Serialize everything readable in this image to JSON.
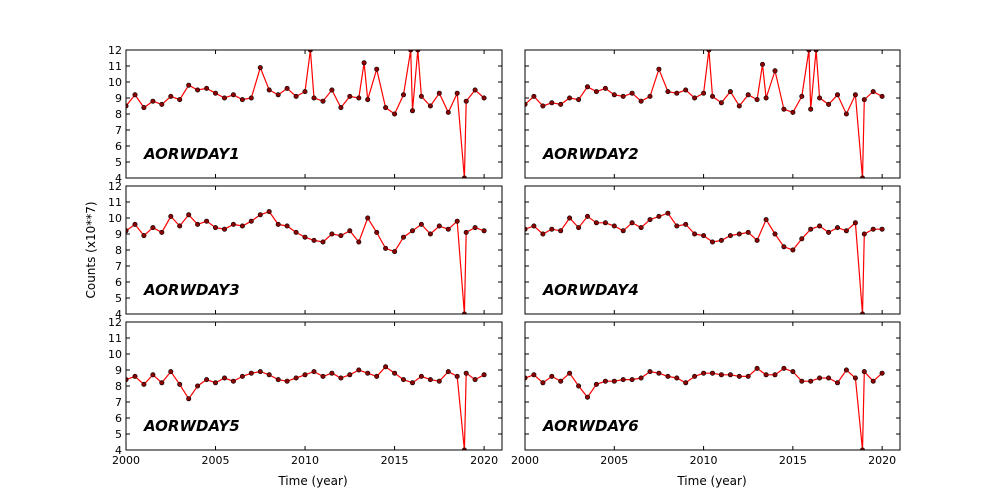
{
  "figure": {
    "ylabel": "Counts (x10**7)",
    "xlabel": "Time (year)",
    "line_color": "#ff0000",
    "marker_fill": "#8b0000",
    "marker_edge": "#000000"
  },
  "chart_data": [
    {
      "type": "line",
      "name": "AORWDAY1",
      "xlim": [
        2000,
        2021
      ],
      "ylim": [
        4,
        12
      ],
      "xticks": [
        2000,
        2005,
        2010,
        2015,
        2020
      ],
      "yticks": [
        4,
        5,
        6,
        7,
        8,
        9,
        10,
        11,
        12
      ],
      "x": [
        2000.0,
        2000.5,
        2001.0,
        2001.5,
        2002.0,
        2002.5,
        2003.0,
        2003.5,
        2004.0,
        2004.5,
        2005.0,
        2005.5,
        2006.0,
        2006.5,
        2007.0,
        2007.5,
        2008.0,
        2008.5,
        2009.0,
        2009.5,
        2010.0,
        2010.3,
        2010.5,
        2011.0,
        2011.5,
        2012.0,
        2012.5,
        2013.0,
        2013.3,
        2013.5,
        2014.0,
        2014.5,
        2015.0,
        2015.5,
        2015.9,
        2016.0,
        2016.3,
        2016.5,
        2017.0,
        2017.5,
        2018.0,
        2018.5,
        2018.9,
        2019.0,
        2019.5,
        2020.0
      ],
      "y": [
        8.5,
        9.2,
        8.4,
        8.8,
        8.6,
        9.1,
        8.9,
        9.8,
        9.5,
        9.6,
        9.3,
        9.0,
        9.2,
        8.9,
        9.0,
        10.9,
        9.5,
        9.2,
        9.6,
        9.1,
        9.4,
        12,
        9.0,
        8.8,
        9.5,
        8.4,
        9.1,
        9.0,
        11.2,
        8.9,
        10.8,
        8.4,
        8.0,
        9.2,
        12,
        8.2,
        12,
        9.1,
        8.5,
        9.3,
        8.1,
        9.3,
        4,
        8.8,
        9.5,
        9.0
      ]
    },
    {
      "type": "line",
      "name": "AORWDAY2",
      "xlim": [
        2000,
        2021
      ],
      "ylim": [
        4,
        12
      ],
      "xticks": [
        2000,
        2005,
        2010,
        2015,
        2020
      ],
      "yticks": [
        4,
        5,
        6,
        7,
        8,
        9,
        10,
        11,
        12
      ],
      "x": [
        2000.0,
        2000.5,
        2001.0,
        2001.5,
        2002.0,
        2002.5,
        2003.0,
        2003.5,
        2004.0,
        2004.5,
        2005.0,
        2005.5,
        2006.0,
        2006.5,
        2007.0,
        2007.5,
        2008.0,
        2008.5,
        2009.0,
        2009.5,
        2010.0,
        2010.3,
        2010.5,
        2011.0,
        2011.5,
        2012.0,
        2012.5,
        2013.0,
        2013.3,
        2013.5,
        2014.0,
        2014.5,
        2015.0,
        2015.5,
        2015.9,
        2016.0,
        2016.3,
        2016.5,
        2017.0,
        2017.5,
        2018.0,
        2018.5,
        2018.9,
        2019.0,
        2019.5,
        2020.0
      ],
      "y": [
        8.6,
        9.1,
        8.5,
        8.7,
        8.6,
        9.0,
        8.9,
        9.7,
        9.4,
        9.6,
        9.2,
        9.1,
        9.3,
        8.8,
        9.1,
        10.8,
        9.4,
        9.3,
        9.5,
        9.0,
        9.3,
        12,
        9.1,
        8.7,
        9.4,
        8.5,
        9.2,
        8.9,
        11.1,
        9.0,
        10.7,
        8.3,
        8.1,
        9.1,
        12,
        8.3,
        12,
        9.0,
        8.6,
        9.2,
        8.0,
        9.2,
        4,
        8.9,
        9.4,
        9.1
      ]
    },
    {
      "type": "line",
      "name": "AORWDAY3",
      "xlim": [
        2000,
        2021
      ],
      "ylim": [
        4,
        12
      ],
      "xticks": [
        2000,
        2005,
        2010,
        2015,
        2020
      ],
      "yticks": [
        4,
        5,
        6,
        7,
        8,
        9,
        10,
        11,
        12
      ],
      "x": [
        2000.0,
        2000.5,
        2001.0,
        2001.5,
        2002.0,
        2002.5,
        2003.0,
        2003.5,
        2004.0,
        2004.5,
        2005.0,
        2005.5,
        2006.0,
        2006.5,
        2007.0,
        2007.5,
        2008.0,
        2008.5,
        2009.0,
        2009.5,
        2010.0,
        2010.5,
        2011.0,
        2011.5,
        2012.0,
        2012.5,
        2013.0,
        2013.5,
        2014.0,
        2014.5,
        2015.0,
        2015.5,
        2016.0,
        2016.5,
        2017.0,
        2017.5,
        2018.0,
        2018.5,
        2018.9,
        2019.0,
        2019.5,
        2020.0
      ],
      "y": [
        9.2,
        9.6,
        8.9,
        9.4,
        9.1,
        10.1,
        9.5,
        10.2,
        9.6,
        9.8,
        9.4,
        9.3,
        9.6,
        9.5,
        9.8,
        10.2,
        10.4,
        9.6,
        9.5,
        9.1,
        8.8,
        8.6,
        8.5,
        9.0,
        8.9,
        9.2,
        8.5,
        10.0,
        9.1,
        8.1,
        7.9,
        8.8,
        9.2,
        9.6,
        9.0,
        9.5,
        9.3,
        9.8,
        4,
        9.1,
        9.4,
        9.2
      ]
    },
    {
      "type": "line",
      "name": "AORWDAY4",
      "xlim": [
        2000,
        2021
      ],
      "ylim": [
        4,
        12
      ],
      "xticks": [
        2000,
        2005,
        2010,
        2015,
        2020
      ],
      "yticks": [
        4,
        5,
        6,
        7,
        8,
        9,
        10,
        11,
        12
      ],
      "x": [
        2000.0,
        2000.5,
        2001.0,
        2001.5,
        2002.0,
        2002.5,
        2003.0,
        2003.5,
        2004.0,
        2004.5,
        2005.0,
        2005.5,
        2006.0,
        2006.5,
        2007.0,
        2007.5,
        2008.0,
        2008.5,
        2009.0,
        2009.5,
        2010.0,
        2010.5,
        2011.0,
        2011.5,
        2012.0,
        2012.5,
        2013.0,
        2013.5,
        2014.0,
        2014.5,
        2015.0,
        2015.5,
        2016.0,
        2016.5,
        2017.0,
        2017.5,
        2018.0,
        2018.5,
        2018.9,
        2019.0,
        2019.5,
        2020.0
      ],
      "y": [
        9.3,
        9.5,
        9.0,
        9.3,
        9.2,
        10.0,
        9.4,
        10.1,
        9.7,
        9.7,
        9.5,
        9.2,
        9.7,
        9.4,
        9.9,
        10.1,
        10.3,
        9.5,
        9.6,
        9.0,
        8.9,
        8.5,
        8.6,
        8.9,
        9.0,
        9.1,
        8.6,
        9.9,
        9.0,
        8.2,
        8.0,
        8.7,
        9.3,
        9.5,
        9.1,
        9.4,
        9.2,
        9.7,
        4,
        9.0,
        9.3,
        9.3
      ]
    },
    {
      "type": "line",
      "name": "AORWDAY5",
      "xlim": [
        2000,
        2021
      ],
      "ylim": [
        4,
        12
      ],
      "xticks": [
        2000,
        2005,
        2010,
        2015,
        2020
      ],
      "yticks": [
        4,
        5,
        6,
        7,
        8,
        9,
        10,
        11,
        12
      ],
      "x": [
        2000.0,
        2000.5,
        2001.0,
        2001.5,
        2002.0,
        2002.5,
        2003.0,
        2003.5,
        2004.0,
        2004.5,
        2005.0,
        2005.5,
        2006.0,
        2006.5,
        2007.0,
        2007.5,
        2008.0,
        2008.5,
        2009.0,
        2009.5,
        2010.0,
        2010.5,
        2011.0,
        2011.5,
        2012.0,
        2012.5,
        2013.0,
        2013.5,
        2014.0,
        2014.5,
        2015.0,
        2015.5,
        2016.0,
        2016.5,
        2017.0,
        2017.5,
        2018.0,
        2018.5,
        2018.9,
        2019.0,
        2019.5,
        2020.0
      ],
      "y": [
        8.4,
        8.6,
        8.1,
        8.7,
        8.2,
        8.9,
        8.1,
        7.2,
        8.0,
        8.4,
        8.2,
        8.5,
        8.3,
        8.6,
        8.8,
        8.9,
        8.7,
        8.4,
        8.3,
        8.5,
        8.7,
        8.9,
        8.6,
        8.8,
        8.5,
        8.7,
        9.0,
        8.8,
        8.6,
        9.2,
        8.8,
        8.4,
        8.2,
        8.6,
        8.4,
        8.3,
        8.9,
        8.6,
        4,
        8.8,
        8.4,
        8.7
      ]
    },
    {
      "type": "line",
      "name": "AORWDAY6",
      "xlim": [
        2000,
        2021
      ],
      "ylim": [
        4,
        12
      ],
      "xticks": [
        2000,
        2005,
        2010,
        2015,
        2020
      ],
      "yticks": [
        4,
        5,
        6,
        7,
        8,
        9,
        10,
        11,
        12
      ],
      "x": [
        2000.0,
        2000.5,
        2001.0,
        2001.5,
        2002.0,
        2002.5,
        2003.0,
        2003.5,
        2004.0,
        2004.5,
        2005.0,
        2005.5,
        2006.0,
        2006.5,
        2007.0,
        2007.5,
        2008.0,
        2008.5,
        2009.0,
        2009.5,
        2010.0,
        2010.5,
        2011.0,
        2011.5,
        2012.0,
        2012.5,
        2013.0,
        2013.5,
        2014.0,
        2014.5,
        2015.0,
        2015.5,
        2016.0,
        2016.5,
        2017.0,
        2017.5,
        2018.0,
        2018.5,
        2018.9,
        2019.0,
        2019.5,
        2020.0
      ],
      "y": [
        8.5,
        8.7,
        8.2,
        8.6,
        8.3,
        8.8,
        8.0,
        7.3,
        8.1,
        8.3,
        8.3,
        8.4,
        8.4,
        8.5,
        8.9,
        8.8,
        8.6,
        8.5,
        8.2,
        8.6,
        8.8,
        8.8,
        8.7,
        8.7,
        8.6,
        8.6,
        9.1,
        8.7,
        8.7,
        9.1,
        8.9,
        8.3,
        8.3,
        8.5,
        8.5,
        8.2,
        9.0,
        8.5,
        4,
        8.9,
        8.3,
        8.8
      ]
    }
  ]
}
